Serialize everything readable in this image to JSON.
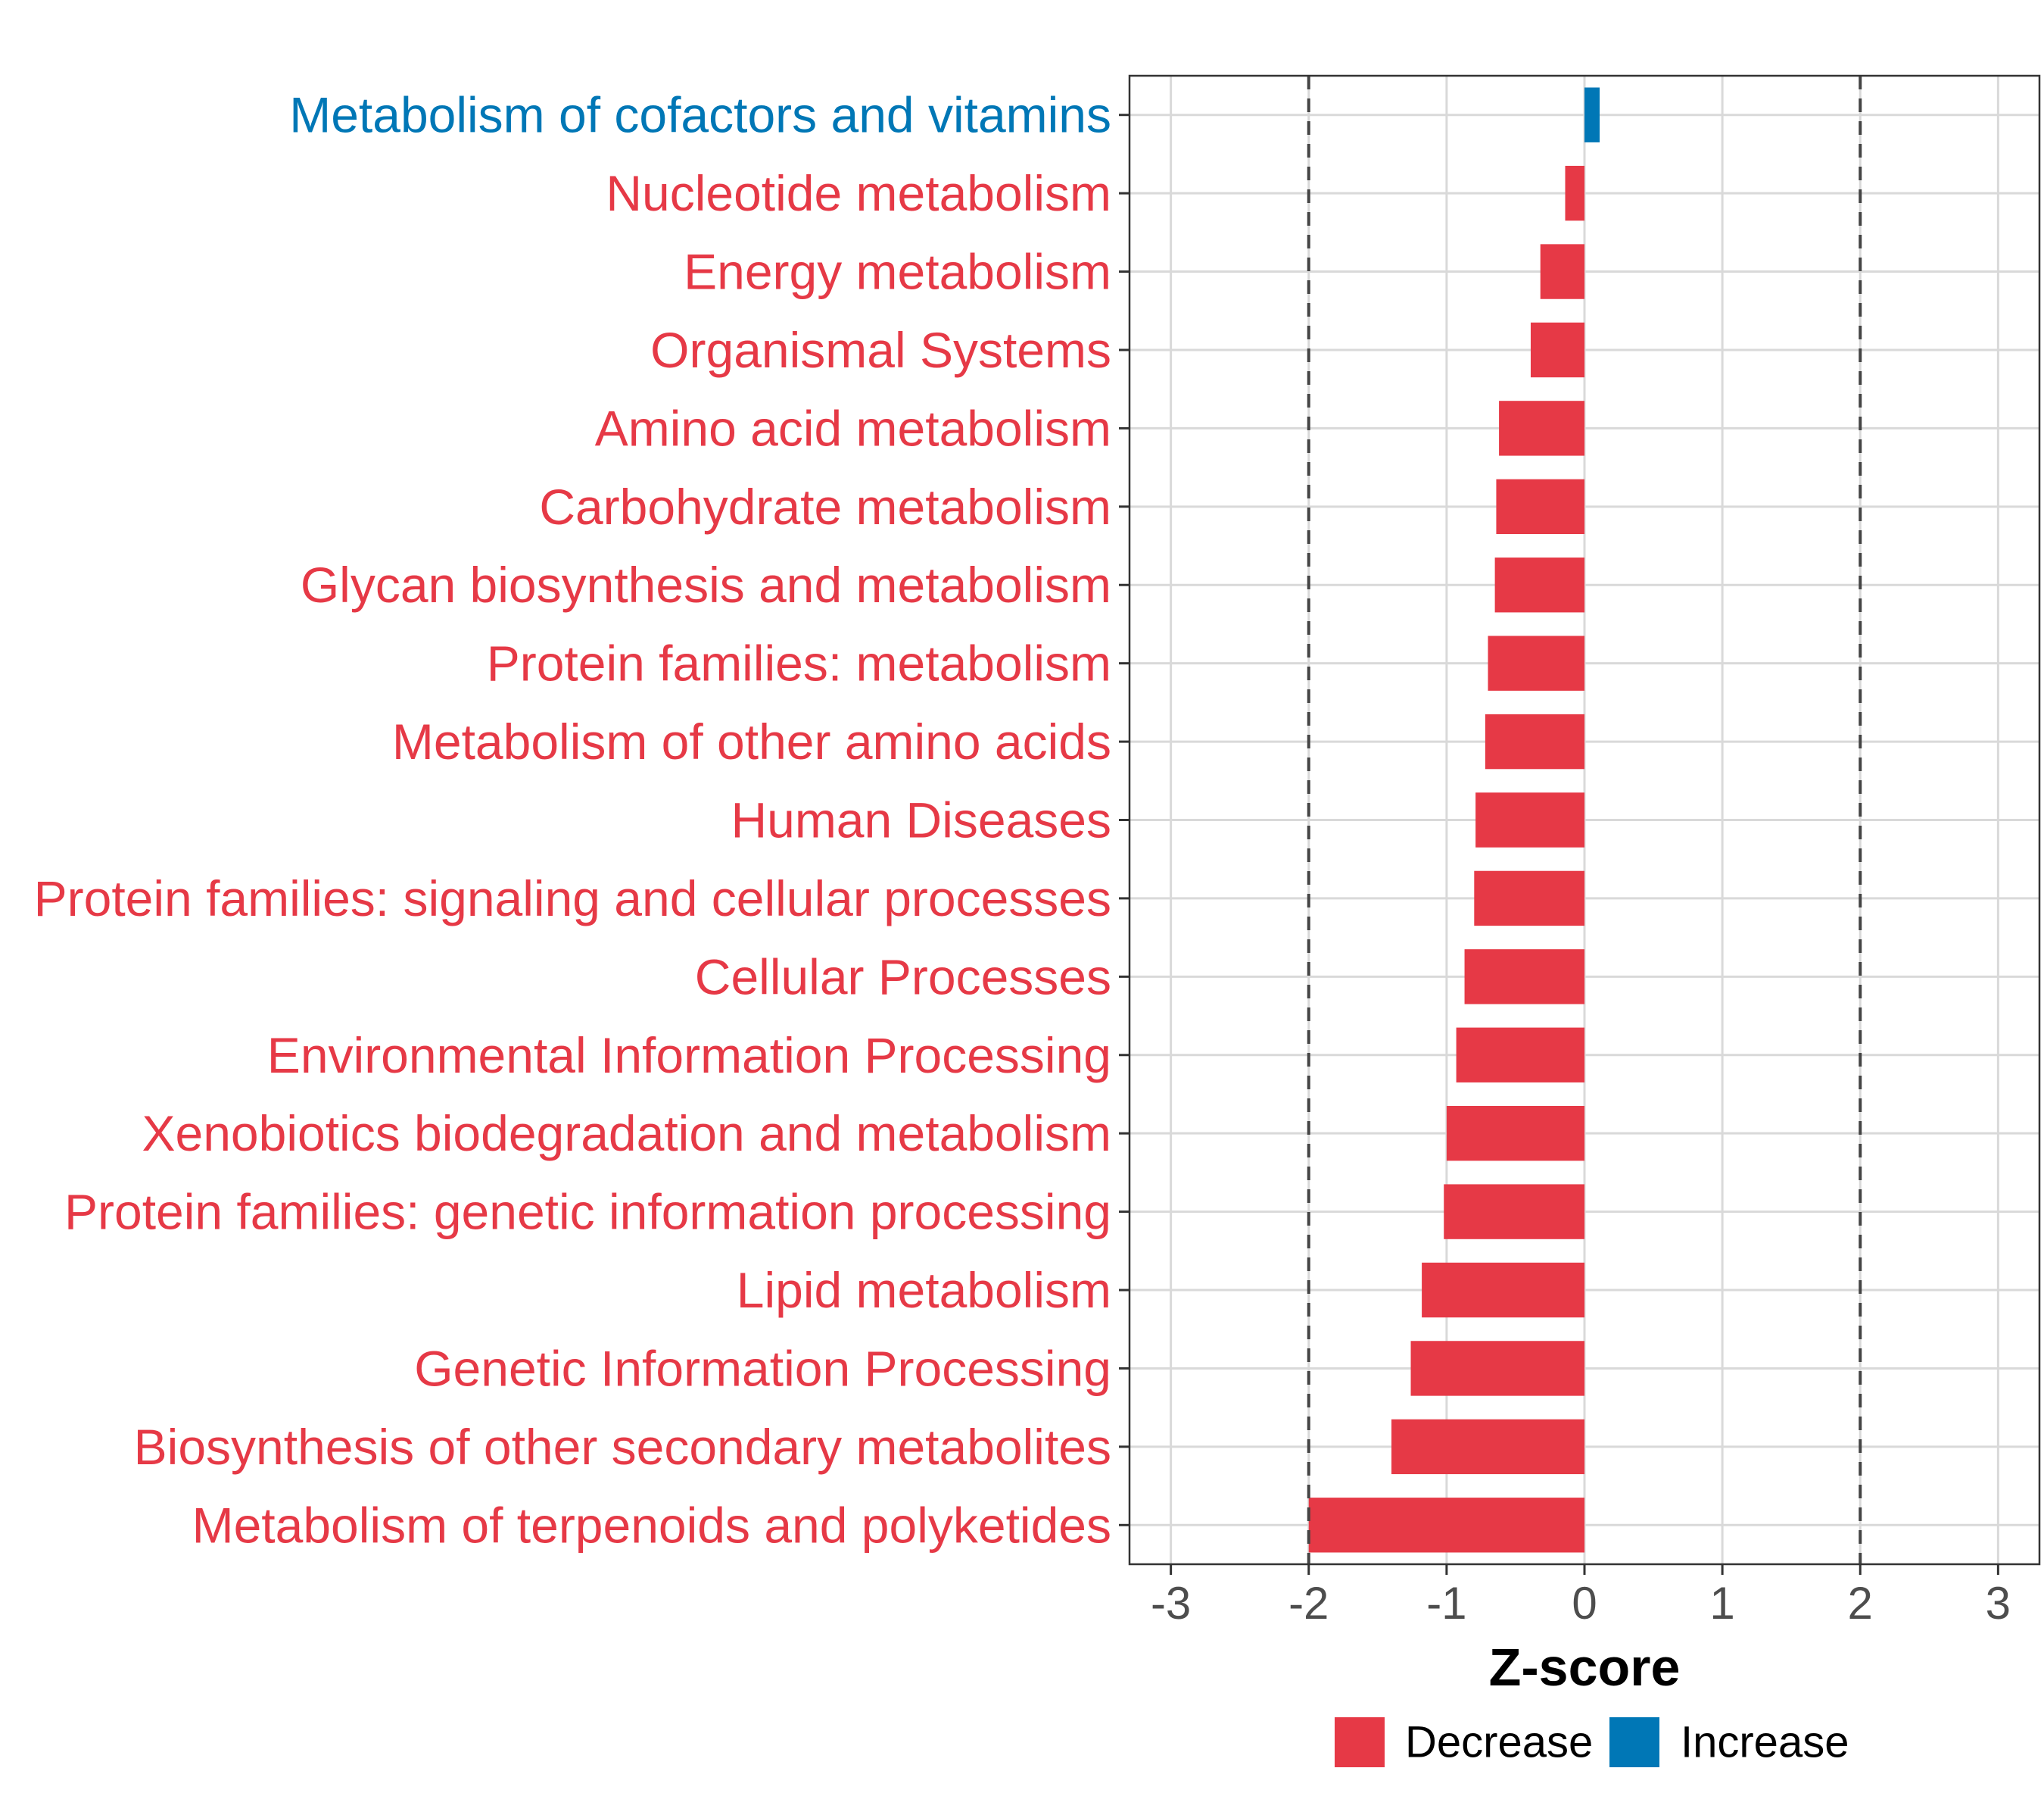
{
  "chart_data": {
    "type": "bar",
    "orientation": "horizontal",
    "title": "",
    "xlabel": "Z-score",
    "ylabel": "",
    "xlim": [
      -3.3,
      3.3
    ],
    "xticks": [
      -3,
      -2,
      -1,
      0,
      1,
      2,
      3
    ],
    "xtick_labels": [
      "-3",
      "-2",
      "-1",
      "0",
      "1",
      "2",
      "3"
    ],
    "threshold_lines": [
      -2,
      2
    ],
    "grid": true,
    "legend_position": "bottom",
    "colors": {
      "Decrease": "#e63946",
      "Increase": "#0077b6"
    },
    "legend": [
      {
        "label": "Decrease",
        "color": "#e63946"
      },
      {
        "label": "Increase",
        "color": "#0077b6"
      }
    ],
    "categories": [
      "Metabolism of cofactors and vitamins",
      "Nucleotide metabolism",
      "Energy metabolism",
      "Organismal Systems",
      "Amino acid metabolism",
      "Carbohydrate metabolism",
      "Glycan biosynthesis and metabolism",
      "Protein families: metabolism",
      "Metabolism of other amino acids",
      "Human Diseases",
      "Protein families: signaling and cellular processes",
      "Cellular Processes",
      "Environmental Information Processing",
      "Xenobiotics biodegradation and metabolism",
      "Protein families: genetic information processing",
      "Lipid metabolism",
      "Genetic Information Processing",
      "Biosynthesis of other secondary metabolites",
      "Metabolism of terpenoids and polyketides"
    ],
    "values": [
      0.11,
      -0.14,
      -0.32,
      -0.39,
      -0.62,
      -0.64,
      -0.65,
      -0.7,
      -0.72,
      -0.79,
      -0.8,
      -0.87,
      -0.93,
      -1.0,
      -1.02,
      -1.18,
      -1.26,
      -1.4,
      -2.0
    ],
    "groups": [
      "Increase",
      "Decrease",
      "Decrease",
      "Decrease",
      "Decrease",
      "Decrease",
      "Decrease",
      "Decrease",
      "Decrease",
      "Decrease",
      "Decrease",
      "Decrease",
      "Decrease",
      "Decrease",
      "Decrease",
      "Decrease",
      "Decrease",
      "Decrease",
      "Decrease"
    ]
  }
}
